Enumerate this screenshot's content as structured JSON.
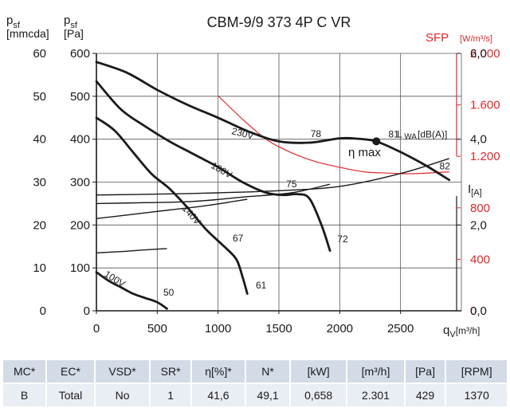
{
  "chart_data": {
    "type": "line",
    "title": "CBM-9/9 373 4P C VR",
    "x_axis": {
      "label_main": "q",
      "label_sub": "V",
      "label_unit": "[m³/h]",
      "range": [
        0,
        3000
      ],
      "ticks": [
        "0",
        "500",
        "1000",
        "1500",
        "2000",
        "2500"
      ]
    },
    "y_axis_pa": {
      "label_main": "p",
      "label_sub": "sf",
      "label_unit": "[Pa]",
      "range": [
        0,
        600
      ],
      "ticks": [
        "0",
        "100",
        "200",
        "300",
        "400",
        "500",
        "600"
      ]
    },
    "y_axis_mmcda": {
      "label_main": "p",
      "label_sub": "sf",
      "label_unit": "[mmcda]",
      "ticks": [
        "0",
        "10",
        "20",
        "30",
        "40",
        "50",
        "60"
      ]
    },
    "y_axis_sfp": {
      "label": "SFP",
      "unit": "[W/m³/s]",
      "range": [
        0,
        2000
      ],
      "ticks": [
        "0",
        "400",
        "800",
        "1.200",
        "1.600",
        "2.000"
      ],
      "color": "#e0282b"
    },
    "y_axis_current": {
      "label": "I",
      "unit": "[A]",
      "range": [
        0,
        6
      ],
      "ticks": [
        "0,0",
        "2,0",
        "4,0",
        "6,0"
      ]
    },
    "grid": true,
    "pressure_curves": [
      {
        "name": "230V",
        "x": [
          0,
          250,
          500,
          750,
          1000,
          1250,
          1500,
          1750,
          2000,
          2150,
          2300,
          2500,
          2700,
          2900
        ],
        "y": [
          580,
          555,
          515,
          480,
          450,
          418,
          395,
          392,
          402,
          401,
          395,
          370,
          340,
          305
        ]
      },
      {
        "name": "180V",
        "x": [
          0,
          200,
          400,
          600,
          800,
          1000,
          1200,
          1400,
          1550,
          1650,
          1750,
          1850,
          1920
        ],
        "y": [
          535,
          470,
          430,
          395,
          365,
          335,
          300,
          275,
          270,
          272,
          262,
          200,
          140
        ]
      },
      {
        "name": "140V",
        "x": [
          0,
          150,
          300,
          450,
          600,
          750,
          900,
          1050,
          1150,
          1200,
          1240
        ],
        "y": [
          450,
          420,
          370,
          320,
          285,
          240,
          190,
          150,
          120,
          80,
          40
        ]
      },
      {
        "name": "100V",
        "x": [
          0,
          100,
          200,
          300,
          400,
          500,
          580
        ],
        "y": [
          90,
          70,
          55,
          40,
          30,
          20,
          5
        ]
      }
    ],
    "current_curves": [
      {
        "x": [
          0,
          500,
          1000,
          1500,
          2000,
          2500,
          2900
        ],
        "y": [
          2.7,
          2.72,
          2.75,
          2.8,
          2.9,
          3.2,
          3.55
        ]
      },
      {
        "x": [
          0,
          400,
          800,
          1200,
          1600,
          1920
        ],
        "y": [
          2.5,
          2.52,
          2.55,
          2.65,
          2.75,
          2.95
        ]
      },
      {
        "x": [
          0,
          300,
          600,
          900,
          1240
        ],
        "y": [
          2.15,
          2.25,
          2.35,
          2.45,
          2.6
        ]
      },
      {
        "x": [
          0,
          200,
          400,
          580
        ],
        "y": [
          1.35,
          1.38,
          1.42,
          1.45
        ]
      }
    ],
    "sfp_curve": {
      "x": [
        1000,
        1200,
        1400,
        1600,
        1800,
        2000,
        2200,
        2400,
        2600,
        2900
      ],
      "y": [
        1670,
        1490,
        1330,
        1230,
        1160,
        1115,
        1080,
        1070,
        1065,
        1080
      ]
    },
    "annotations": [
      {
        "text": "78",
        "x": 1760,
        "y": 405
      },
      {
        "text": "81",
        "x": 2400,
        "y": 404
      },
      {
        "text": "L",
        "x": 2470,
        "y": 404
      },
      {
        "text": "WA",
        "x": 2530,
        "y": 400
      },
      {
        "text": "[dB(A)]",
        "x": 2640,
        "y": 404
      },
      {
        "text": "82",
        "x": 2820,
        "y": 330
      },
      {
        "text": "75",
        "x": 1560,
        "y": 288
      },
      {
        "text": "72",
        "x": 1980,
        "y": 160
      },
      {
        "text": "67",
        "x": 1120,
        "y": 162
      },
      {
        "text": "61",
        "x": 1310,
        "y": 52
      },
      {
        "text": "50",
        "x": 550,
        "y": 35
      },
      {
        "text": "η max",
        "x": 2070,
        "y": 360
      }
    ],
    "eta_max_point": {
      "x": 2301,
      "y": 395
    }
  },
  "table": {
    "headers": [
      "MC*",
      "EC*",
      "VSD*",
      "SR*",
      "η[%]*",
      "N*",
      "[kW]",
      "[m³/h]",
      "[Pa]",
      "[RPM]"
    ],
    "row": [
      "B",
      "Total",
      "No",
      "1",
      "41,6",
      "49,1",
      "0,658",
      "2.301",
      "429",
      "1370"
    ]
  }
}
